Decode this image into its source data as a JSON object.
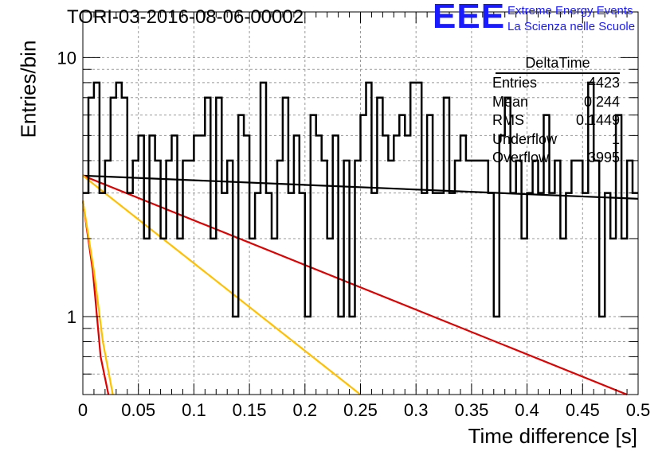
{
  "title": "TORI-03-2016-08-06-00002",
  "logo": {
    "mark": "EEE",
    "line1": "Extreme Energy Events",
    "line2": "La Scienza nelle Scuole",
    "color": "#1a1aff"
  },
  "stats": {
    "name": "DeltaTime",
    "rows": [
      {
        "label": "Entries",
        "value": "4423"
      },
      {
        "label": "Mean",
        "value": "0.244"
      },
      {
        "label": "RMS",
        "value": "0.1449"
      },
      {
        "label": "Underflow",
        "value": "1"
      },
      {
        "label": "Overflow",
        "value": "3995"
      }
    ]
  },
  "chart_data": {
    "type": "line",
    "xlabel": "Time difference [s]",
    "ylabel": "Entries/bin",
    "xlim": [
      0,
      0.5
    ],
    "ylim": [
      0.5,
      15
    ],
    "y_scale": "log",
    "grid": true,
    "x_ticks": [
      "0",
      "0.05",
      "0.1",
      "0.15",
      "0.2",
      "0.25",
      "0.3",
      "0.35",
      "0.4",
      "0.45",
      "0.5"
    ],
    "y_ticks": [
      "1",
      "10"
    ],
    "histogram": {
      "bin_width": 0.005,
      "color": "#000000",
      "counts": [
        3,
        7,
        8,
        3,
        4,
        7,
        8,
        7,
        3,
        4,
        5,
        2,
        5,
        4,
        2,
        4,
        5,
        2,
        4,
        4,
        5,
        5,
        7,
        2,
        7,
        3,
        4,
        1,
        6,
        5,
        2,
        3,
        8,
        3,
        2,
        4,
        7,
        3,
        5,
        3,
        1,
        6,
        5,
        4,
        2,
        5,
        1,
        4,
        1,
        4,
        6,
        8,
        3,
        7,
        5,
        4,
        5,
        6,
        5,
        8,
        8,
        3,
        6,
        3,
        3,
        7,
        3,
        4,
        5,
        4,
        4,
        4,
        4,
        3,
        1,
        5,
        7,
        3,
        4,
        2,
        3,
        4,
        3,
        6,
        3,
        4,
        2,
        3,
        4,
        4,
        3,
        8,
        4,
        1,
        3,
        2,
        6,
        2,
        4,
        3
      ]
    },
    "fits": [
      {
        "color": "#000000",
        "points": [
          [
            0.0,
            3.5
          ],
          [
            0.5,
            2.85
          ]
        ]
      },
      {
        "color": "#e00000",
        "points": [
          [
            0.0,
            3.5
          ],
          [
            0.49,
            0.5
          ]
        ]
      },
      {
        "color": "#ffc000",
        "points": [
          [
            0.0,
            3.5
          ],
          [
            0.25,
            0.5
          ]
        ]
      },
      {
        "color": "#e00000",
        "points": [
          [
            0.0,
            2.8
          ],
          [
            0.009,
            1.5
          ],
          [
            0.016,
            0.7
          ],
          [
            0.023,
            0.5
          ]
        ]
      },
      {
        "color": "#ffc000",
        "points": [
          [
            0.0,
            2.8
          ],
          [
            0.01,
            1.5
          ],
          [
            0.018,
            0.8
          ],
          [
            0.027,
            0.5
          ]
        ]
      }
    ]
  }
}
